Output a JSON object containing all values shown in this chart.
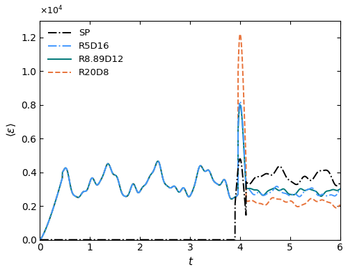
{
  "title": "",
  "xlabel": "t",
  "ylabel": "$\\langle \\epsilon \\rangle$",
  "xlim": [
    0,
    6
  ],
  "ylim": [
    0,
    13000.0
  ],
  "ytick_scale": 10000.0,
  "lines": {
    "SP": {
      "color": "#000000",
      "linestyle": "-.",
      "linewidth": 1.4,
      "zorder": 5
    },
    "R5D16": {
      "color": "#4499ff",
      "linestyle": "-.",
      "linewidth": 1.4,
      "zorder": 4
    },
    "R8.89D12": {
      "color": "#007878",
      "linestyle": "-",
      "linewidth": 1.4,
      "zorder": 3
    },
    "R20D8": {
      "color": "#E8733A",
      "linestyle": "--",
      "linewidth": 1.4,
      "zorder": 2
    }
  },
  "legend_order": [
    "SP",
    "R5D16",
    "R8.89D12",
    "R20D8"
  ],
  "legend_loc": "upper left",
  "figure_facecolor": "white"
}
